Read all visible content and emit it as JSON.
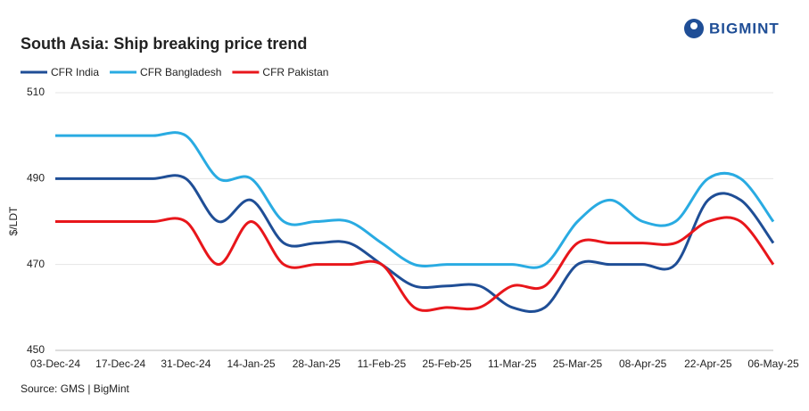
{
  "brand": "BIGMINT",
  "chart_data": {
    "type": "line",
    "title": "South Asia: Ship breaking  price trend",
    "y_label": "$/LDT",
    "source": "Source: GMS | BigMint",
    "categories": [
      "03-Dec-24",
      null,
      "17-Dec-24",
      null,
      "31-Dec-24",
      null,
      "14-Jan-25",
      null,
      "28-Jan-25",
      null,
      "11-Feb-25",
      null,
      "25-Feb-25",
      null,
      "11-Mar-25",
      null,
      "25-Mar-25",
      null,
      "08-Apr-25",
      null,
      "22-Apr-25",
      null,
      "06-May-25"
    ],
    "series": [
      {
        "name": "CFR India",
        "color": "#1f4e96",
        "values": [
          490,
          490,
          490,
          490,
          490,
          480,
          485,
          475,
          475,
          475,
          470,
          465,
          465,
          465,
          460,
          460,
          470,
          470,
          470,
          470,
          485,
          485,
          475
        ]
      },
      {
        "name": "CFR Bangladesh",
        "color": "#29abe2",
        "values": [
          500,
          500,
          500,
          500,
          500,
          490,
          490,
          480,
          480,
          480,
          475,
          470,
          470,
          470,
          470,
          470,
          480,
          485,
          480,
          480,
          490,
          490,
          480
        ]
      },
      {
        "name": "CFR Pakistan",
        "color": "#e8161b",
        "values": [
          480,
          480,
          480,
          480,
          480,
          470,
          480,
          470,
          470,
          470,
          470,
          460,
          460,
          460,
          465,
          465,
          475,
          475,
          475,
          475,
          480,
          480,
          470
        ]
      }
    ],
    "ylim": [
      450,
      510
    ],
    "yticks": [
      450,
      470,
      490,
      510
    ],
    "grid": true
  }
}
